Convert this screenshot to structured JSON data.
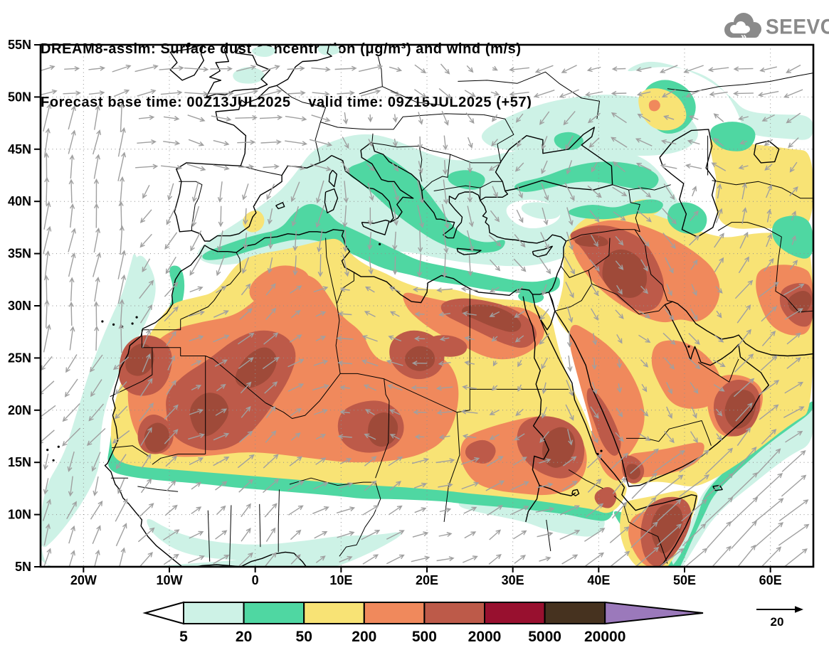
{
  "header": {
    "title_line1": "DREAM8-assim: Surface dust concentration (μg/m³) and wind (m/s)",
    "title_line2": "Forecast base time: 00Z13JUL2025    valid time: 09Z15JUL2025 (+57)"
  },
  "logo": {
    "brand": "SEEVCCC",
    "icon": "cloud-icon",
    "color": "#8a8a8a"
  },
  "map": {
    "lat_ticks": [
      "55N",
      "50N",
      "45N",
      "40N",
      "35N",
      "30N",
      "25N",
      "20N",
      "15N",
      "10N",
      "5N"
    ],
    "lon_ticks": [
      "20W",
      "10W",
      "0",
      "10E",
      "20E",
      "30E",
      "40E",
      "50E",
      "60E"
    ],
    "extent": {
      "lon_min": -25,
      "lon_max": 65,
      "lat_min": 5,
      "lat_max": 55
    }
  },
  "legend": {
    "boundaries": [
      "5",
      "20",
      "50",
      "200",
      "500",
      "2000",
      "5000",
      "20000"
    ],
    "band_colors": [
      "#ffffff",
      "#cdf2e6",
      "#4fd7a2",
      "#f8e375",
      "#f0895c",
      "#bd5a49",
      "#98102f",
      "#46321f",
      "#9b79bb"
    ]
  },
  "wind_reference": {
    "label": "20"
  },
  "palette": {
    "dust_5_20": "#cdf2e6",
    "dust_20_50": "#4fd7a2",
    "dust_50_200": "#f8e375",
    "dust_200_500": "#f0895c",
    "dust_500_2000": "#bd5a49",
    "dust_2000_5000_map": "#9f4a39",
    "dust_2000_5000_bar": "#98102f",
    "dust_5000_20000": "#46321f",
    "dust_over_20000": "#9b79bb",
    "wind_arrow": "#a0a0a0",
    "coast": "#000000",
    "grid": "#909090"
  }
}
